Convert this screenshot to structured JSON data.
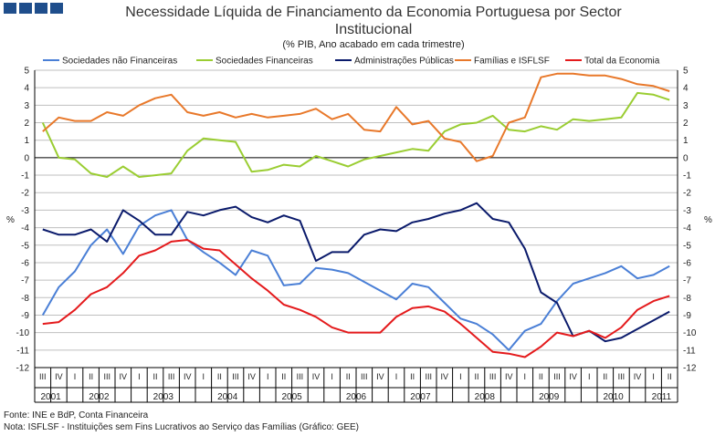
{
  "header": {
    "logo_icon": "logo-squares-icon",
    "logo_color": "#1f4e8c"
  },
  "chart_data": {
    "type": "line",
    "title": "Necessidade Líquida de Financiamento da Economia Portuguesa por Sector",
    "title_line2": "Institucional",
    "subtitle": "(% PIB, Ano acabado em cada trimestre)",
    "ylabel_left": "%",
    "ylabel_right": "%",
    "ylim": [
      -12,
      5
    ],
    "yticks": [
      5,
      4,
      3,
      2,
      1,
      0,
      -1,
      -2,
      -3,
      -4,
      -5,
      -6,
      -7,
      -8,
      -9,
      -10,
      -11,
      -12
    ],
    "grid_y": true,
    "legend_position": "top",
    "quarters": [
      "III",
      "IV",
      "I",
      "II",
      "III",
      "IV",
      "I",
      "II",
      "III",
      "IV",
      "I",
      "II",
      "III",
      "IV",
      "I",
      "II",
      "III",
      "IV",
      "I",
      "II",
      "III",
      "IV",
      "I",
      "II",
      "III",
      "IV",
      "I",
      "II",
      "III",
      "IV",
      "I",
      "II",
      "III",
      "IV",
      "I",
      "II",
      "III",
      "IV",
      "I",
      "II"
    ],
    "years": [
      {
        "label": "2001",
        "start": 0,
        "count": 2
      },
      {
        "label": "2002",
        "start": 2,
        "count": 4
      },
      {
        "label": "2003",
        "start": 6,
        "count": 4
      },
      {
        "label": "2004",
        "start": 10,
        "count": 4
      },
      {
        "label": "2005",
        "start": 14,
        "count": 4
      },
      {
        "label": "2006",
        "start": 18,
        "count": 4
      },
      {
        "label": "2007",
        "start": 22,
        "count": 4
      },
      {
        "label": "2008",
        "start": 26,
        "count": 4
      },
      {
        "label": "2009",
        "start": 30,
        "count": 4
      },
      {
        "label": "2010",
        "start": 34,
        "count": 4
      },
      {
        "label": "2011",
        "start": 38,
        "count": 2
      }
    ],
    "series": [
      {
        "name": "Sociedades não Financeiras",
        "color": "#4a7fd6",
        "values": [
          -9.0,
          -7.4,
          -6.5,
          -5.0,
          -4.1,
          -5.5,
          -3.9,
          -3.3,
          -3.0,
          -4.7,
          -5.4,
          -6.0,
          -6.7,
          -5.3,
          -5.6,
          -7.3,
          -7.2,
          -6.3,
          -6.4,
          -6.6,
          -7.1,
          -7.6,
          -8.1,
          -7.2,
          -7.4,
          -8.3,
          -9.2,
          -9.5,
          -10.1,
          -11.0,
          -9.9,
          -9.5,
          -8.2,
          -7.2,
          -6.9,
          -6.6,
          -6.2,
          -6.9,
          -6.7,
          -6.2
        ]
      },
      {
        "name": "Sociedades Financeiras",
        "color": "#9acd32",
        "values": [
          2.0,
          0.0,
          -0.1,
          -0.9,
          -1.1,
          -0.5,
          -1.1,
          -1.0,
          -0.9,
          0.4,
          1.1,
          1.0,
          0.9,
          -0.8,
          -0.7,
          -0.4,
          -0.5,
          0.1,
          -0.2,
          -0.5,
          -0.1,
          0.1,
          0.3,
          0.5,
          0.4,
          1.5,
          1.9,
          2.0,
          2.4,
          1.6,
          1.5,
          1.8,
          1.6,
          2.2,
          2.1,
          2.2,
          2.3,
          3.7,
          3.6,
          3.3
        ]
      },
      {
        "name": "Administrações Públicas",
        "color": "#0a1a6b",
        "values": [
          -4.1,
          -4.4,
          -4.4,
          -4.1,
          -4.8,
          -3.0,
          -3.6,
          -4.4,
          -4.4,
          -3.1,
          -3.3,
          -3.0,
          -2.8,
          -3.4,
          -3.7,
          -3.3,
          -3.6,
          -5.9,
          -5.4,
          -5.4,
          -4.4,
          -4.1,
          -4.2,
          -3.7,
          -3.5,
          -3.2,
          -3.0,
          -2.6,
          -3.5,
          -3.7,
          -5.2,
          -7.7,
          -8.3,
          -10.2,
          -9.9,
          -10.5,
          -10.3,
          -9.8,
          -9.3,
          -8.8
        ]
      },
      {
        "name": "Famílias e ISFLSF",
        "color": "#e8782a",
        "values": [
          1.5,
          2.3,
          2.1,
          2.1,
          2.6,
          2.4,
          3.0,
          3.4,
          3.6,
          2.6,
          2.4,
          2.6,
          2.3,
          2.5,
          2.3,
          2.4,
          2.5,
          2.8,
          2.2,
          2.5,
          1.6,
          1.5,
          2.9,
          1.9,
          2.1,
          1.1,
          0.9,
          -0.2,
          0.1,
          2.0,
          2.3,
          4.6,
          4.8,
          4.8,
          4.7,
          4.7,
          4.5,
          4.2,
          4.1,
          3.8
        ]
      },
      {
        "name": "Total da Economia",
        "color": "#e41a1c",
        "values": [
          -9.5,
          -9.4,
          -8.7,
          -7.8,
          -7.4,
          -6.6,
          -5.6,
          -5.3,
          -4.8,
          -4.7,
          -5.2,
          -5.3,
          -6.1,
          -6.9,
          -7.6,
          -8.4,
          -8.7,
          -9.1,
          -9.7,
          -10.0,
          -10.0,
          -10.0,
          -9.1,
          -8.6,
          -8.5,
          -8.8,
          -9.5,
          -10.3,
          -11.1,
          -11.2,
          -11.4,
          -10.8,
          -10.0,
          -10.2,
          -9.9,
          -10.3,
          -9.7,
          -8.7,
          -8.2,
          -7.9
        ]
      }
    ]
  },
  "footer": {
    "source": "Fonte: INE e BdP, Conta Financeira",
    "note": "Nota: ISFLSF - Instituições sem Fins Lucrativos ao Serviço das Famílias   (Gráfico: GEE)"
  }
}
